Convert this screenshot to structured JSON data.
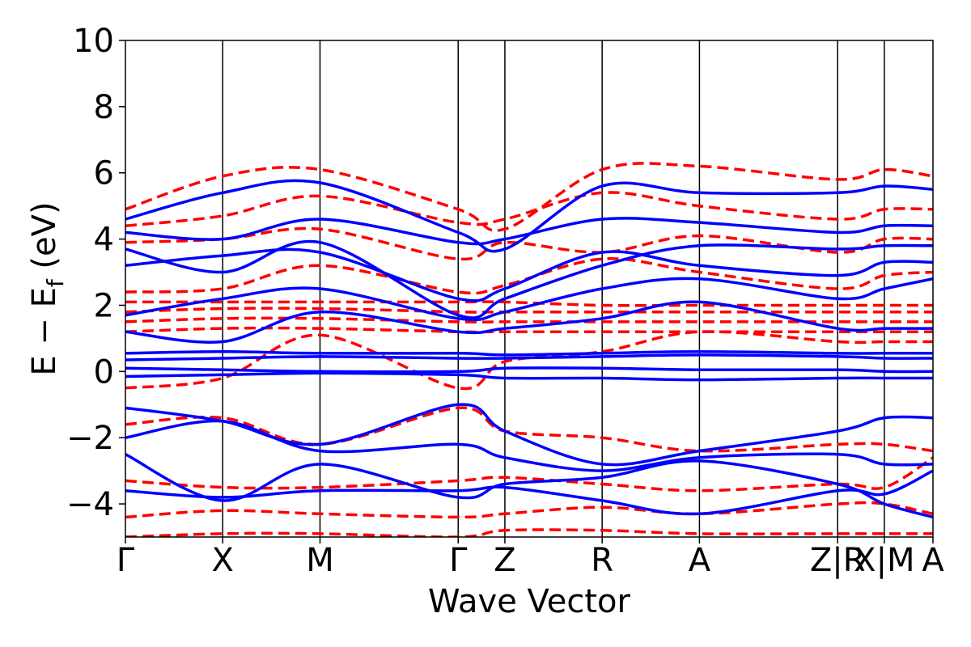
{
  "chart_data": {
    "type": "line",
    "title": "",
    "xlabel": "Wave Vector",
    "ylabel_parts": {
      "main": "E − E",
      "sub": "f",
      "unit": " (eV)"
    },
    "ylim": [
      -5,
      10
    ],
    "yticks": [
      -4,
      -2,
      0,
      2,
      4,
      6,
      8,
      10
    ],
    "ytick_labels": [
      "−4",
      "−2",
      "0",
      "2",
      "4",
      "6",
      "8",
      "10"
    ],
    "x_range": [
      0,
      8.3
    ],
    "kpoints": [
      {
        "label": "Γ",
        "x": 0.0
      },
      {
        "label": "X",
        "x": 1.0
      },
      {
        "label": "M",
        "x": 2.0
      },
      {
        "label": "Γ",
        "x": 3.42
      },
      {
        "label": "Z",
        "x": 3.9
      },
      {
        "label": "R",
        "x": 4.9
      },
      {
        "label": "A",
        "x": 5.9
      },
      {
        "label": "Z|R",
        "x": 7.32
      },
      {
        "label": "X|M",
        "x": 7.8
      },
      {
        "label": "A",
        "x": 8.3
      }
    ],
    "grid": false,
    "legend": "none",
    "series": [
      {
        "style": "solid",
        "color": "#0000ff",
        "bands": [
          [
            [
              0,
              0.1
            ],
            [
              1,
              0.05
            ],
            [
              2,
              0.0
            ],
            [
              3.42,
              0.0
            ],
            [
              3.9,
              0.1
            ],
            [
              4.9,
              0.1
            ],
            [
              5.9,
              0.05
            ],
            [
              7.32,
              0.05
            ],
            [
              7.8,
              0.0
            ],
            [
              8.3,
              0.0
            ]
          ],
          [
            [
              0,
              0.35
            ],
            [
              1,
              0.4
            ],
            [
              2,
              0.45
            ],
            [
              3.42,
              0.4
            ],
            [
              3.9,
              0.4
            ],
            [
              4.9,
              0.45
            ],
            [
              5.9,
              0.5
            ],
            [
              7.32,
              0.45
            ],
            [
              7.8,
              0.4
            ],
            [
              8.3,
              0.4
            ]
          ],
          [
            [
              0,
              -0.15
            ],
            [
              1,
              -0.1
            ],
            [
              2,
              -0.05
            ],
            [
              3.42,
              -0.1
            ],
            [
              3.9,
              -0.2
            ],
            [
              4.9,
              -0.2
            ],
            [
              5.9,
              -0.25
            ],
            [
              7.32,
              -0.2
            ],
            [
              7.8,
              -0.2
            ],
            [
              8.3,
              -0.2
            ]
          ],
          [
            [
              0,
              0.55
            ],
            [
              1,
              0.6
            ],
            [
              2,
              0.55
            ],
            [
              3.42,
              0.55
            ],
            [
              3.9,
              0.5
            ],
            [
              4.9,
              0.55
            ],
            [
              5.9,
              0.6
            ],
            [
              7.32,
              0.55
            ],
            [
              7.8,
              0.55
            ],
            [
              8.3,
              0.55
            ]
          ],
          [
            [
              0,
              -1.1
            ],
            [
              1,
              -1.5
            ],
            [
              2,
              -2.2
            ],
            [
              3.42,
              -1.0
            ],
            [
              3.9,
              -1.8
            ],
            [
              4.9,
              -2.8
            ],
            [
              5.9,
              -2.4
            ],
            [
              7.32,
              -1.8
            ],
            [
              7.8,
              -1.4
            ],
            [
              8.3,
              -1.4
            ]
          ],
          [
            [
              0,
              -2.0
            ],
            [
              1,
              -1.5
            ],
            [
              2,
              -2.4
            ],
            [
              3.42,
              -2.2
            ],
            [
              3.9,
              -2.6
            ],
            [
              4.9,
              -3.0
            ],
            [
              5.9,
              -2.6
            ],
            [
              7.32,
              -2.5
            ],
            [
              7.8,
              -2.8
            ],
            [
              8.3,
              -2.8
            ]
          ],
          [
            [
              0,
              -3.6
            ],
            [
              1,
              -3.8
            ],
            [
              2,
              -3.6
            ],
            [
              3.42,
              -3.6
            ],
            [
              3.9,
              -3.5
            ],
            [
              4.9,
              -3.9
            ],
            [
              5.9,
              -4.3
            ],
            [
              7.32,
              -3.6
            ],
            [
              7.8,
              -3.7
            ],
            [
              8.3,
              -3.0
            ]
          ],
          [
            [
              0,
              -2.5
            ],
            [
              1,
              -3.9
            ],
            [
              2,
              -2.8
            ],
            [
              3.42,
              -3.8
            ],
            [
              3.9,
              -3.4
            ],
            [
              4.9,
              -3.2
            ],
            [
              5.9,
              -2.7
            ],
            [
              7.32,
              -3.4
            ],
            [
              7.8,
              -4.0
            ],
            [
              8.3,
              -4.4
            ]
          ],
          [
            [
              0,
              1.7
            ],
            [
              1,
              2.2
            ],
            [
              2,
              2.5
            ],
            [
              3.42,
              1.6
            ],
            [
              3.9,
              1.8
            ],
            [
              4.9,
              2.5
            ],
            [
              5.9,
              2.8
            ],
            [
              7.32,
              2.2
            ],
            [
              7.8,
              2.5
            ],
            [
              8.3,
              2.8
            ]
          ],
          [
            [
              0,
              3.7
            ],
            [
              1,
              3.0
            ],
            [
              2,
              3.9
            ],
            [
              3.42,
              1.7
            ],
            [
              3.9,
              2.2
            ],
            [
              4.9,
              3.2
            ],
            [
              5.9,
              3.8
            ],
            [
              7.32,
              3.7
            ],
            [
              7.8,
              3.8
            ],
            [
              8.3,
              3.8
            ]
          ],
          [
            [
              0,
              4.6
            ],
            [
              1,
              5.4
            ],
            [
              2,
              5.7
            ],
            [
              3.42,
              4.2
            ],
            [
              3.9,
              3.7
            ],
            [
              4.9,
              5.6
            ],
            [
              5.9,
              5.4
            ],
            [
              7.32,
              5.4
            ],
            [
              7.8,
              5.6
            ],
            [
              8.3,
              5.5
            ]
          ],
          [
            [
              0,
              4.2
            ],
            [
              1,
              4.0
            ],
            [
              2,
              4.6
            ],
            [
              3.42,
              3.9
            ],
            [
              3.9,
              4.0
            ],
            [
              4.9,
              4.6
            ],
            [
              5.9,
              4.5
            ],
            [
              7.32,
              4.2
            ],
            [
              7.8,
              4.4
            ],
            [
              8.3,
              4.4
            ]
          ],
          [
            [
              0,
              3.2
            ],
            [
              1,
              3.5
            ],
            [
              2,
              3.6
            ],
            [
              3.42,
              2.2
            ],
            [
              3.9,
              2.5
            ],
            [
              4.9,
              3.6
            ],
            [
              5.9,
              3.2
            ],
            [
              7.32,
              2.9
            ],
            [
              7.8,
              3.3
            ],
            [
              8.3,
              3.3
            ]
          ],
          [
            [
              0,
              1.2
            ],
            [
              1,
              0.9
            ],
            [
              2,
              1.8
            ],
            [
              3.42,
              1.2
            ],
            [
              3.9,
              1.3
            ],
            [
              4.9,
              1.6
            ],
            [
              5.9,
              2.1
            ],
            [
              7.32,
              1.3
            ],
            [
              7.8,
              1.3
            ],
            [
              8.3,
              1.3
            ]
          ]
        ]
      },
      {
        "style": "dashed",
        "color": "#ff0000",
        "bands": [
          [
            [
              0,
              1.2
            ],
            [
              1,
              1.3
            ],
            [
              2,
              1.3
            ],
            [
              3.42,
              1.2
            ],
            [
              3.9,
              1.2
            ],
            [
              4.9,
              1.2
            ],
            [
              5.9,
              1.2
            ],
            [
              7.32,
              1.2
            ],
            [
              7.8,
              1.2
            ],
            [
              8.3,
              1.2
            ]
          ],
          [
            [
              0,
              1.5
            ],
            [
              1,
              1.6
            ],
            [
              2,
              1.6
            ],
            [
              3.42,
              1.5
            ],
            [
              3.9,
              1.5
            ],
            [
              4.9,
              1.5
            ],
            [
              5.9,
              1.5
            ],
            [
              7.32,
              1.5
            ],
            [
              7.8,
              1.5
            ],
            [
              8.3,
              1.5
            ]
          ],
          [
            [
              0,
              1.8
            ],
            [
              1,
              1.9
            ],
            [
              2,
              1.9
            ],
            [
              3.42,
              1.8
            ],
            [
              3.9,
              1.8
            ],
            [
              4.9,
              1.8
            ],
            [
              5.9,
              1.8
            ],
            [
              7.32,
              1.8
            ],
            [
              7.8,
              1.8
            ],
            [
              8.3,
              1.8
            ]
          ],
          [
            [
              0,
              2.1
            ],
            [
              1,
              2.1
            ],
            [
              2,
              2.1
            ],
            [
              3.42,
              2.1
            ],
            [
              3.9,
              2.1
            ],
            [
              4.9,
              2.0
            ],
            [
              5.9,
              2.0
            ],
            [
              7.32,
              2.0
            ],
            [
              7.8,
              2.0
            ],
            [
              8.3,
              2.0
            ]
          ],
          [
            [
              0,
              2.4
            ],
            [
              1,
              2.5
            ],
            [
              2,
              3.2
            ],
            [
              3.42,
              2.4
            ],
            [
              3.9,
              2.6
            ],
            [
              4.9,
              3.4
            ],
            [
              5.9,
              3.0
            ],
            [
              7.32,
              2.5
            ],
            [
              7.8,
              2.9
            ],
            [
              8.3,
              3.0
            ]
          ],
          [
            [
              0,
              4.9
            ],
            [
              1,
              5.9
            ],
            [
              2,
              6.1
            ],
            [
              3.42,
              4.9
            ],
            [
              3.9,
              4.3
            ],
            [
              4.9,
              6.1
            ],
            [
              5.9,
              6.2
            ],
            [
              7.32,
              5.8
            ],
            [
              7.8,
              6.1
            ],
            [
              8.3,
              5.9
            ]
          ],
          [
            [
              0,
              4.4
            ],
            [
              1,
              4.7
            ],
            [
              2,
              5.3
            ],
            [
              3.42,
              4.5
            ],
            [
              3.9,
              4.6
            ],
            [
              4.9,
              5.4
            ],
            [
              5.9,
              5.0
            ],
            [
              7.32,
              4.6
            ],
            [
              7.8,
              4.9
            ],
            [
              8.3,
              4.9
            ]
          ],
          [
            [
              0,
              3.9
            ],
            [
              1,
              4.0
            ],
            [
              2,
              4.3
            ],
            [
              3.42,
              3.4
            ],
            [
              3.9,
              3.9
            ],
            [
              4.9,
              3.6
            ],
            [
              5.9,
              4.1
            ],
            [
              7.32,
              3.6
            ],
            [
              7.8,
              4.0
            ],
            [
              8.3,
              4.0
            ]
          ],
          [
            [
              0,
              -0.5
            ],
            [
              1,
              -0.2
            ],
            [
              2,
              1.1
            ],
            [
              3.42,
              -0.5
            ],
            [
              3.9,
              0.3
            ],
            [
              4.9,
              0.6
            ],
            [
              5.9,
              1.2
            ],
            [
              7.32,
              0.9
            ],
            [
              7.8,
              0.9
            ],
            [
              8.3,
              0.9
            ]
          ],
          [
            [
              0,
              -1.6
            ],
            [
              1,
              -1.4
            ],
            [
              2,
              -2.2
            ],
            [
              3.42,
              -1.1
            ],
            [
              3.9,
              -1.8
            ],
            [
              4.9,
              -2.0
            ],
            [
              5.9,
              -2.4
            ],
            [
              7.32,
              -2.2
            ],
            [
              7.8,
              -2.2
            ],
            [
              8.3,
              -2.4
            ]
          ],
          [
            [
              0,
              -3.3
            ],
            [
              1,
              -3.5
            ],
            [
              2,
              -3.5
            ],
            [
              3.42,
              -3.3
            ],
            [
              3.9,
              -3.2
            ],
            [
              4.9,
              -3.4
            ],
            [
              5.9,
              -3.6
            ],
            [
              7.32,
              -3.4
            ],
            [
              7.8,
              -3.5
            ],
            [
              8.3,
              -2.6
            ]
          ],
          [
            [
              0,
              -4.4
            ],
            [
              1,
              -4.2
            ],
            [
              2,
              -4.3
            ],
            [
              3.42,
              -4.4
            ],
            [
              3.9,
              -4.3
            ],
            [
              4.9,
              -4.1
            ],
            [
              5.9,
              -4.3
            ],
            [
              7.32,
              -4.0
            ],
            [
              7.8,
              -4.0
            ],
            [
              8.3,
              -4.3
            ]
          ],
          [
            [
              0,
              -5.0
            ],
            [
              1,
              -4.9
            ],
            [
              2,
              -4.9
            ],
            [
              3.42,
              -5.0
            ],
            [
              3.9,
              -4.8
            ],
            [
              4.9,
              -4.8
            ],
            [
              5.9,
              -4.9
            ],
            [
              7.32,
              -4.9
            ],
            [
              7.8,
              -4.9
            ],
            [
              8.3,
              -4.9
            ]
          ]
        ]
      }
    ]
  }
}
